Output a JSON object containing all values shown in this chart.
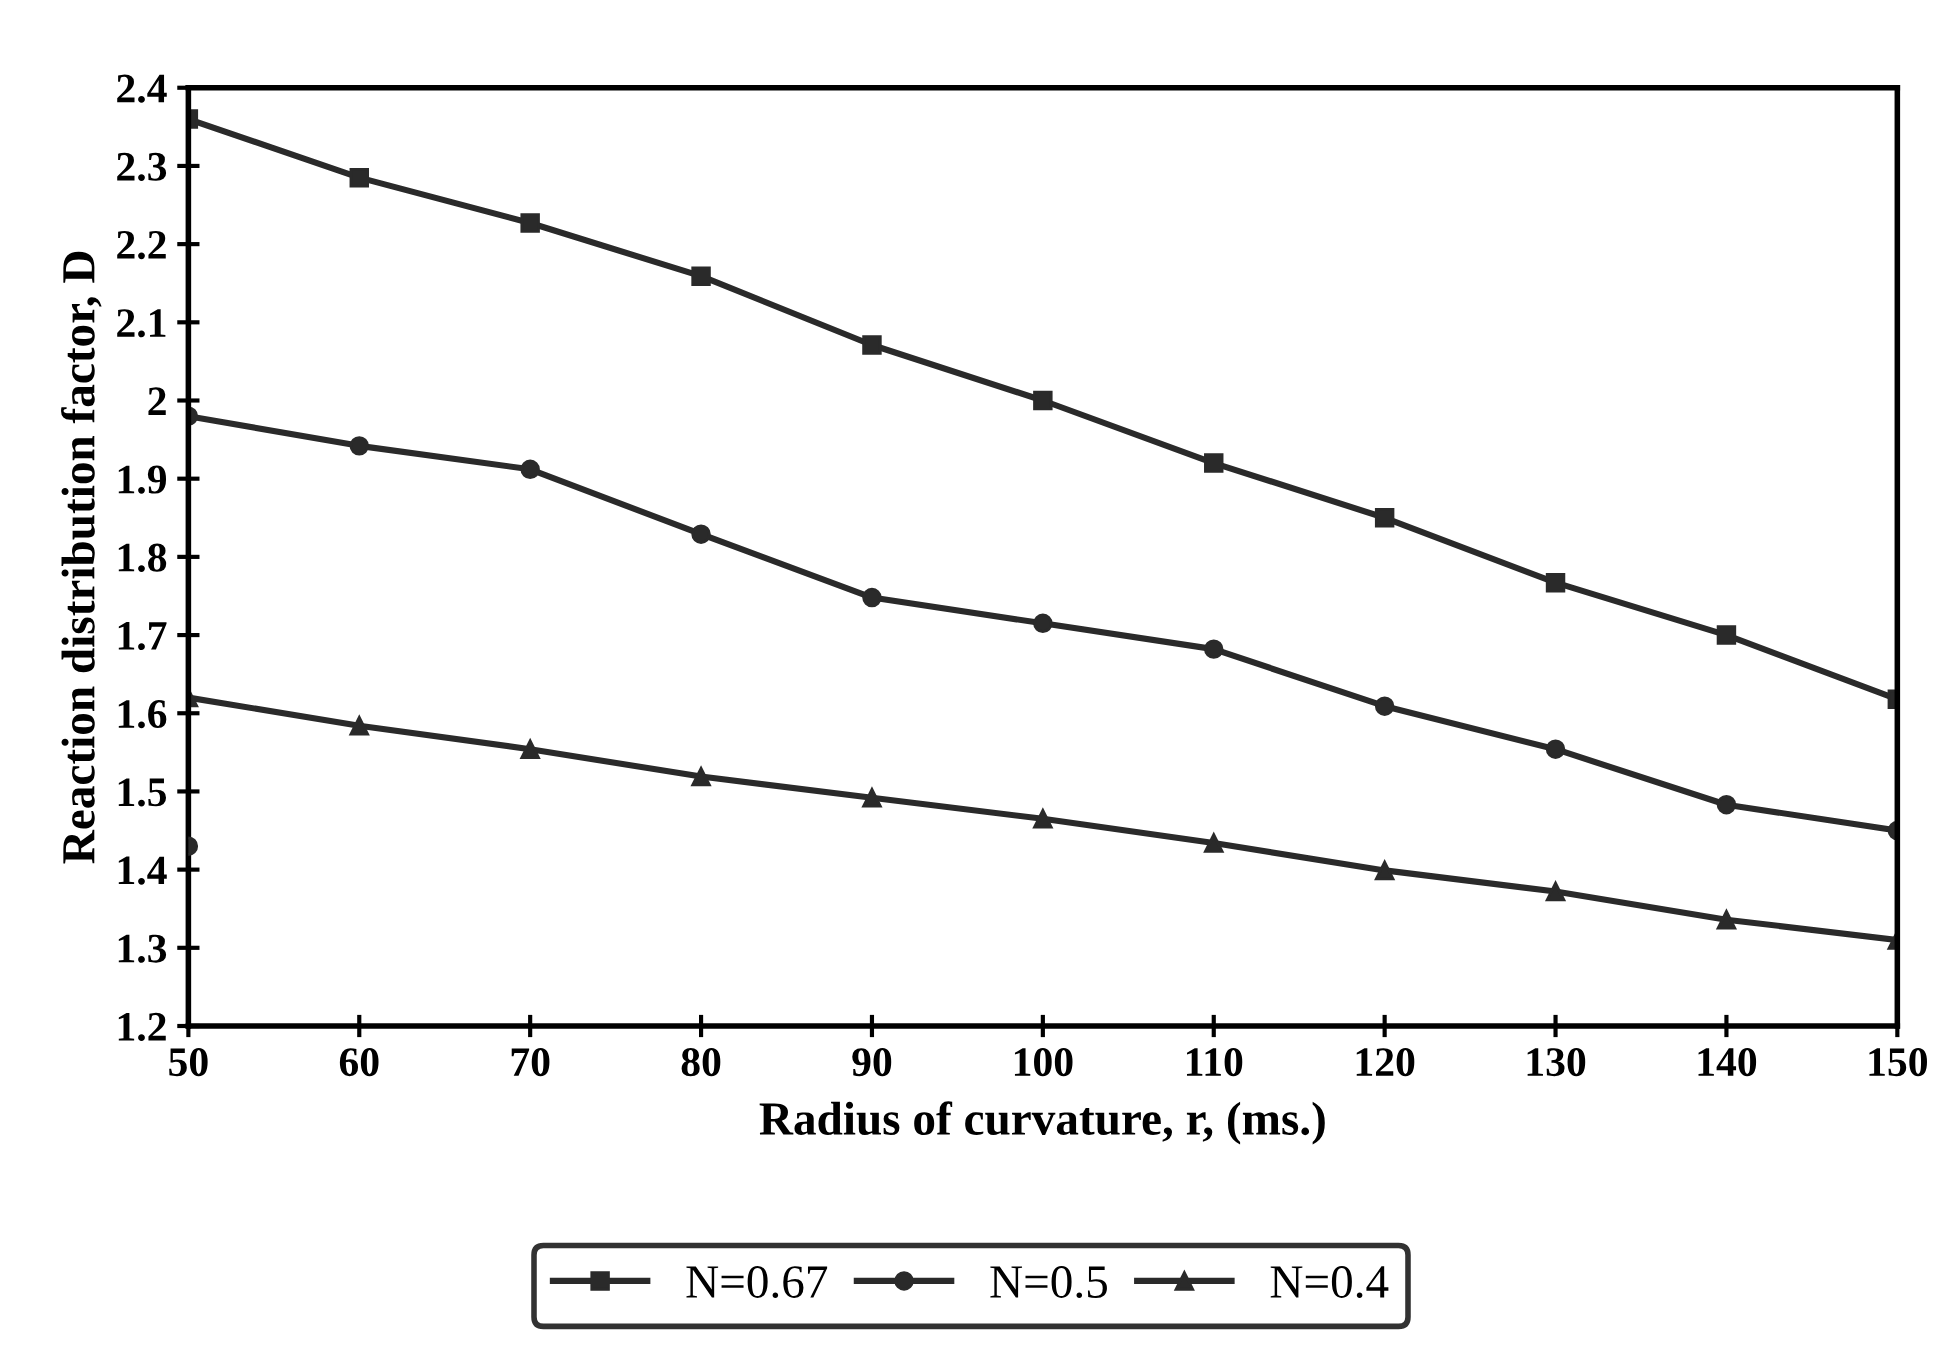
{
  "chart_data": {
    "type": "line",
    "xlabel": "Radius of curvature, r, (ms.)",
    "ylabel": "Reaction distribution factor, D",
    "x": [
      50,
      60,
      70,
      80,
      90,
      100,
      110,
      120,
      130,
      140,
      150
    ],
    "series": [
      {
        "name": "N=0.67",
        "color": "#2a2a2a",
        "marker": "square",
        "values": [
          2.36,
          2.285,
          2.227,
          2.159,
          2.071,
          2.0,
          1.92,
          1.85,
          1.767,
          1.7,
          1.618
        ]
      },
      {
        "name": "N=0.5",
        "color": "#2a2a2a",
        "marker": "circle",
        "values": [
          1.98,
          1.942,
          1.912,
          1.829,
          1.748,
          1.715,
          1.682,
          1.609,
          1.554,
          1.483,
          1.45
        ]
      },
      {
        "name": "N=0.4",
        "color": "#2a2a2a",
        "marker": "triangle",
        "values": [
          1.62,
          1.584,
          1.554,
          1.519,
          1.492,
          1.465,
          1.434,
          1.399,
          1.372,
          1.336,
          1.31
        ]
      },
      {
        "type": "scatter",
        "color": "#2a2a2a",
        "marker": "circle",
        "x": [
          50
        ],
        "values": [
          1.43
        ]
      }
    ],
    "xlim": [
      50,
      150
    ],
    "xticks": [
      50,
      60,
      70,
      80,
      90,
      100,
      110,
      120,
      130,
      140,
      150
    ],
    "ylim": [
      1.2,
      2.4
    ],
    "yticks": [
      1.2,
      1.3,
      1.4,
      1.5,
      1.6,
      1.7,
      1.8,
      1.9,
      2,
      2.1,
      2.2,
      2.3,
      2.4
    ],
    "grid": false,
    "legend": "bottom",
    "line_style": "solid"
  }
}
